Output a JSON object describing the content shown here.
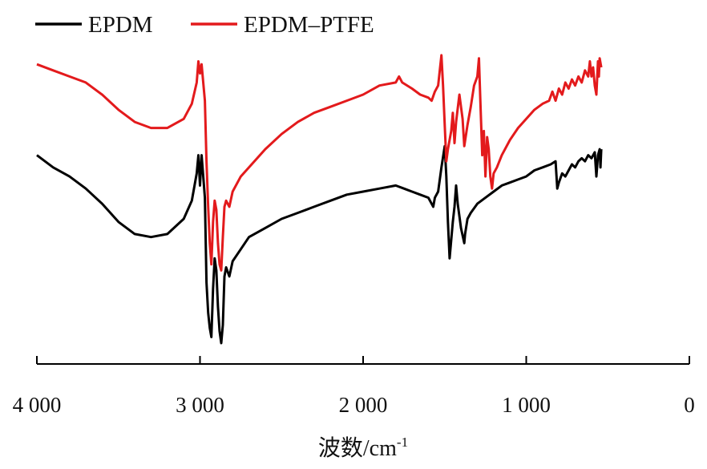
{
  "chart_data": {
    "type": "line",
    "title": "",
    "xlabel": "波数/cm",
    "xlabel_sup": "-1",
    "ylabel": "",
    "xlim": [
      4000,
      0
    ],
    "x_reversed": true,
    "y_ticks_shown": false,
    "grid": false,
    "legend_position": "top-left",
    "x_ticks": [
      4000,
      3000,
      2000,
      1000,
      0
    ],
    "x_tick_labels": [
      "4 000",
      "3 000",
      "2 000",
      "1 000",
      "0"
    ],
    "series": [
      {
        "name": "EPDM",
        "color": "#000000",
        "points": [
          [
            4000,
            0.62
          ],
          [
            3900,
            0.58
          ],
          [
            3800,
            0.55
          ],
          [
            3700,
            0.51
          ],
          [
            3600,
            0.46
          ],
          [
            3500,
            0.4
          ],
          [
            3400,
            0.36
          ],
          [
            3300,
            0.35
          ],
          [
            3200,
            0.36
          ],
          [
            3100,
            0.41
          ],
          [
            3050,
            0.47
          ],
          [
            3020,
            0.56
          ],
          [
            3010,
            0.62
          ],
          [
            3000,
            0.52
          ],
          [
            2990,
            0.62
          ],
          [
            2970,
            0.48
          ],
          [
            2960,
            0.2
          ],
          [
            2950,
            0.1
          ],
          [
            2940,
            0.05
          ],
          [
            2930,
            0.02
          ],
          [
            2920,
            0.18
          ],
          [
            2910,
            0.28
          ],
          [
            2900,
            0.24
          ],
          [
            2890,
            0.12
          ],
          [
            2880,
            0.04
          ],
          [
            2870,
            0.0
          ],
          [
            2860,
            0.06
          ],
          [
            2850,
            0.22
          ],
          [
            2840,
            0.25
          ],
          [
            2820,
            0.22
          ],
          [
            2800,
            0.27
          ],
          [
            2750,
            0.31
          ],
          [
            2700,
            0.35
          ],
          [
            2600,
            0.38
          ],
          [
            2500,
            0.41
          ],
          [
            2400,
            0.43
          ],
          [
            2300,
            0.45
          ],
          [
            2200,
            0.47
          ],
          [
            2100,
            0.49
          ],
          [
            2000,
            0.5
          ],
          [
            1900,
            0.51
          ],
          [
            1800,
            0.52
          ],
          [
            1750,
            0.51
          ],
          [
            1700,
            0.5
          ],
          [
            1650,
            0.49
          ],
          [
            1600,
            0.48
          ],
          [
            1570,
            0.45
          ],
          [
            1560,
            0.48
          ],
          [
            1540,
            0.5
          ],
          [
            1520,
            0.58
          ],
          [
            1500,
            0.65
          ],
          [
            1490,
            0.55
          ],
          [
            1480,
            0.4
          ],
          [
            1470,
            0.28
          ],
          [
            1460,
            0.34
          ],
          [
            1450,
            0.4
          ],
          [
            1440,
            0.45
          ],
          [
            1430,
            0.52
          ],
          [
            1420,
            0.46
          ],
          [
            1400,
            0.38
          ],
          [
            1380,
            0.33
          ],
          [
            1375,
            0.36
          ],
          [
            1360,
            0.41
          ],
          [
            1340,
            0.43
          ],
          [
            1300,
            0.46
          ],
          [
            1250,
            0.48
          ],
          [
            1200,
            0.5
          ],
          [
            1150,
            0.52
          ],
          [
            1100,
            0.53
          ],
          [
            1050,
            0.54
          ],
          [
            1000,
            0.55
          ],
          [
            950,
            0.57
          ],
          [
            900,
            0.58
          ],
          [
            850,
            0.59
          ],
          [
            820,
            0.6
          ],
          [
            810,
            0.51
          ],
          [
            800,
            0.53
          ],
          [
            780,
            0.56
          ],
          [
            760,
            0.55
          ],
          [
            740,
            0.57
          ],
          [
            720,
            0.59
          ],
          [
            700,
            0.58
          ],
          [
            680,
            0.6
          ],
          [
            660,
            0.61
          ],
          [
            640,
            0.6
          ],
          [
            620,
            0.62
          ],
          [
            600,
            0.61
          ],
          [
            580,
            0.63
          ],
          [
            570,
            0.55
          ],
          [
            560,
            0.62
          ],
          [
            550,
            0.64
          ],
          [
            545,
            0.58
          ],
          [
            540,
            0.64
          ]
        ]
      },
      {
        "name": "EPDM–PTFE",
        "color": "#e31a1c",
        "points": [
          [
            4000,
            0.92
          ],
          [
            3900,
            0.9
          ],
          [
            3800,
            0.88
          ],
          [
            3700,
            0.86
          ],
          [
            3600,
            0.82
          ],
          [
            3500,
            0.77
          ],
          [
            3400,
            0.73
          ],
          [
            3300,
            0.71
          ],
          [
            3200,
            0.71
          ],
          [
            3100,
            0.74
          ],
          [
            3050,
            0.79
          ],
          [
            3020,
            0.86
          ],
          [
            3010,
            0.93
          ],
          [
            3000,
            0.89
          ],
          [
            2990,
            0.92
          ],
          [
            2970,
            0.8
          ],
          [
            2960,
            0.6
          ],
          [
            2950,
            0.45
          ],
          [
            2940,
            0.33
          ],
          [
            2930,
            0.26
          ],
          [
            2920,
            0.4
          ],
          [
            2910,
            0.47
          ],
          [
            2900,
            0.44
          ],
          [
            2890,
            0.33
          ],
          [
            2880,
            0.26
          ],
          [
            2870,
            0.24
          ],
          [
            2860,
            0.35
          ],
          [
            2850,
            0.45
          ],
          [
            2840,
            0.47
          ],
          [
            2820,
            0.45
          ],
          [
            2800,
            0.5
          ],
          [
            2750,
            0.55
          ],
          [
            2700,
            0.58
          ],
          [
            2600,
            0.64
          ],
          [
            2500,
            0.69
          ],
          [
            2400,
            0.73
          ],
          [
            2300,
            0.76
          ],
          [
            2200,
            0.78
          ],
          [
            2100,
            0.8
          ],
          [
            2000,
            0.82
          ],
          [
            1900,
            0.85
          ],
          [
            1800,
            0.86
          ],
          [
            1780,
            0.88
          ],
          [
            1760,
            0.86
          ],
          [
            1700,
            0.84
          ],
          [
            1650,
            0.82
          ],
          [
            1600,
            0.81
          ],
          [
            1580,
            0.8
          ],
          [
            1560,
            0.83
          ],
          [
            1540,
            0.85
          ],
          [
            1520,
            0.95
          ],
          [
            1510,
            0.85
          ],
          [
            1500,
            0.72
          ],
          [
            1490,
            0.6
          ],
          [
            1480,
            0.64
          ],
          [
            1460,
            0.7
          ],
          [
            1450,
            0.76
          ],
          [
            1440,
            0.66
          ],
          [
            1430,
            0.73
          ],
          [
            1410,
            0.82
          ],
          [
            1390,
            0.74
          ],
          [
            1380,
            0.65
          ],
          [
            1360,
            0.72
          ],
          [
            1340,
            0.78
          ],
          [
            1320,
            0.85
          ],
          [
            1300,
            0.88
          ],
          [
            1290,
            0.94
          ],
          [
            1280,
            0.78
          ],
          [
            1270,
            0.62
          ],
          [
            1260,
            0.7
          ],
          [
            1250,
            0.55
          ],
          [
            1240,
            0.68
          ],
          [
            1230,
            0.64
          ],
          [
            1220,
            0.55
          ],
          [
            1210,
            0.51
          ],
          [
            1200,
            0.56
          ],
          [
            1180,
            0.58
          ],
          [
            1150,
            0.62
          ],
          [
            1100,
            0.67
          ],
          [
            1050,
            0.71
          ],
          [
            1000,
            0.74
          ],
          [
            950,
            0.77
          ],
          [
            900,
            0.79
          ],
          [
            860,
            0.8
          ],
          [
            840,
            0.83
          ],
          [
            820,
            0.8
          ],
          [
            800,
            0.84
          ],
          [
            780,
            0.82
          ],
          [
            760,
            0.86
          ],
          [
            740,
            0.84
          ],
          [
            720,
            0.87
          ],
          [
            700,
            0.85
          ],
          [
            680,
            0.88
          ],
          [
            660,
            0.86
          ],
          [
            640,
            0.9
          ],
          [
            620,
            0.88
          ],
          [
            610,
            0.93
          ],
          [
            600,
            0.88
          ],
          [
            590,
            0.91
          ],
          [
            580,
            0.85
          ],
          [
            570,
            0.82
          ],
          [
            560,
            0.93
          ],
          [
            555,
            0.88
          ],
          [
            550,
            0.94
          ],
          [
            540,
            0.91
          ]
        ]
      }
    ]
  }
}
